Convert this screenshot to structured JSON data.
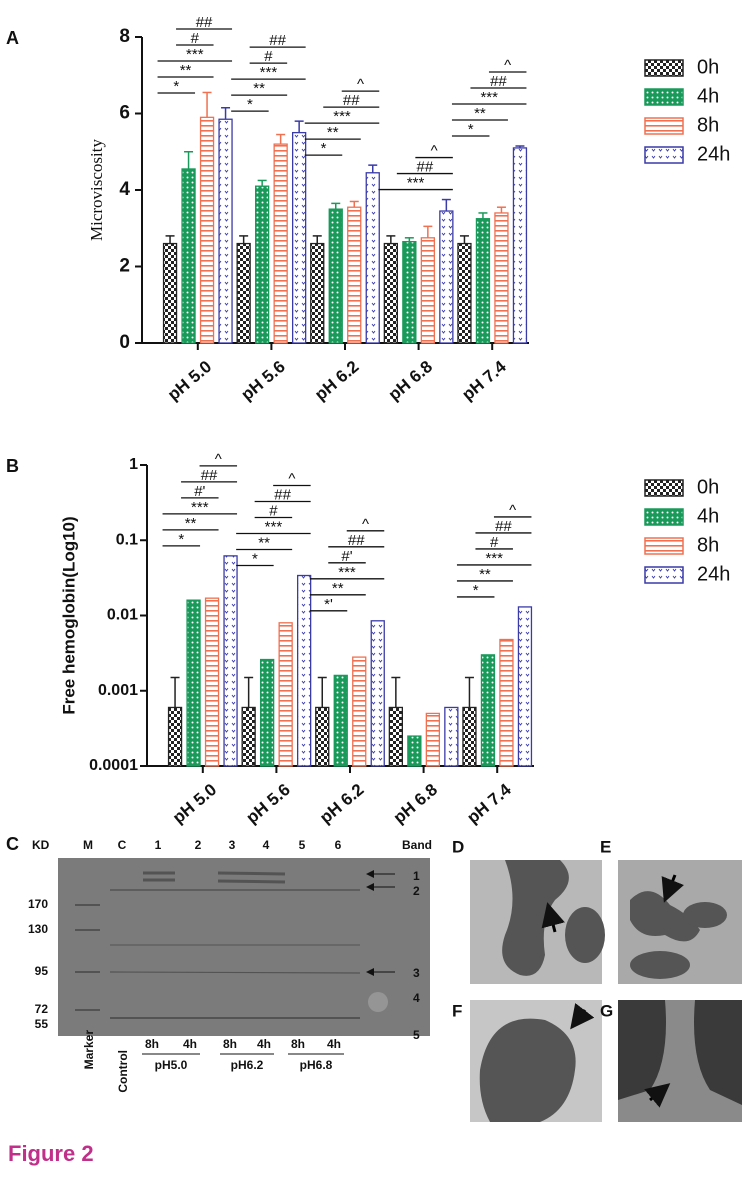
{
  "chart_data": [
    {
      "type": "bar",
      "panel_label": "A",
      "y_label": "Microviscosity",
      "categories": [
        "pH 5.0",
        "pH 5.6",
        "pH 6.2",
        "pH 6.8",
        "pH 7.4"
      ],
      "series": [
        {
          "name": "0h",
          "color": "#222222",
          "values": [
            2.6,
            2.6,
            2.6,
            2.6,
            2.6
          ],
          "errors": [
            0.2,
            0.2,
            0.2,
            0.2,
            0.2
          ]
        },
        {
          "name": "4h",
          "color": "#1a9a5a",
          "values": [
            4.55,
            4.1,
            3.5,
            2.65,
            3.25
          ],
          "errors": [
            0.45,
            0.15,
            0.15,
            0.1,
            0.15
          ]
        },
        {
          "name": "8h",
          "color": "#f07050",
          "values": [
            5.9,
            5.2,
            3.55,
            2.75,
            3.4
          ],
          "errors": [
            0.65,
            0.25,
            0.15,
            0.3,
            0.15
          ]
        },
        {
          "name": "24h",
          "color": "#3a3aa8",
          "values": [
            5.85,
            5.5,
            4.45,
            3.45,
            5.1
          ],
          "errors": [
            0.3,
            0.3,
            0.2,
            0.3,
            0.05
          ]
        }
      ],
      "ylim": [
        0,
        8
      ],
      "yticks": [
        0,
        2,
        4,
        6,
        8
      ],
      "log_scale": false,
      "legend": "right",
      "annotations": [
        [
          "*",
          "**",
          "***",
          "#",
          "##"
        ],
        [
          "*",
          "**",
          "***",
          "#",
          "##"
        ],
        [
          "*",
          "**",
          "***",
          "##",
          "^"
        ],
        [
          "***",
          "##",
          "^"
        ],
        [
          "*",
          "**",
          "***",
          "##",
          "^"
        ]
      ]
    },
    {
      "type": "bar",
      "panel_label": "B",
      "y_label": "Free hemoglobin(Log10)",
      "categories": [
        "pH 5.0",
        "pH 5.6",
        "pH 6.2",
        "pH 6.8",
        "pH 7.4"
      ],
      "series": [
        {
          "name": "0h",
          "color": "#222222",
          "values": [
            0.0006,
            0.0006,
            0.0006,
            0.0006,
            0.0006
          ],
          "errors": [
            0.0009,
            0.0009,
            0.0009,
            0.0009,
            0.0009
          ]
        },
        {
          "name": "4h",
          "color": "#1a9a5a",
          "values": [
            0.016,
            0.0026,
            0.0016,
            0.00025,
            0.003
          ]
        },
        {
          "name": "8h",
          "color": "#f07050",
          "values": [
            0.017,
            0.008,
            0.0028,
            0.0005,
            0.0048
          ]
        },
        {
          "name": "24h",
          "color": "#3a3aa8",
          "values": [
            0.062,
            0.034,
            0.0085,
            0.0006,
            0.013
          ]
        }
      ],
      "ylim": [
        0.0001,
        1
      ],
      "yticks": [
        0.0001,
        0.001,
        0.01,
        0.1,
        1
      ],
      "log_scale": true,
      "legend": "right",
      "annotations": [
        [
          "*",
          "**",
          "***",
          "#'",
          "##",
          "^"
        ],
        [
          "*",
          "**",
          "***",
          "#",
          "##",
          "^"
        ],
        [
          "*'",
          "**",
          "***",
          "#'",
          "##",
          "^"
        ],
        [],
        [
          "*",
          "**",
          "***",
          "#",
          "##",
          "^"
        ]
      ]
    }
  ],
  "panel_c": {
    "label": "C",
    "kd_header": "KD",
    "lanes": [
      "M",
      "C",
      "1",
      "2",
      "3",
      "4",
      "5",
      "6"
    ],
    "band_header": "Band",
    "markers": [
      "170",
      "130",
      "95",
      "72",
      "55"
    ],
    "bands": [
      "1",
      "2",
      "3",
      "4",
      "5"
    ],
    "marker_label": "Marker",
    "control_label": "Control",
    "times": [
      "8h",
      "4h",
      "8h",
      "4h",
      "8h",
      "4h"
    ],
    "groups": [
      "pH5.0",
      "pH6.2",
      "pH6.8"
    ]
  },
  "micrographs": [
    "D",
    "E",
    "F",
    "G"
  ],
  "figure_label": "Figure 2"
}
